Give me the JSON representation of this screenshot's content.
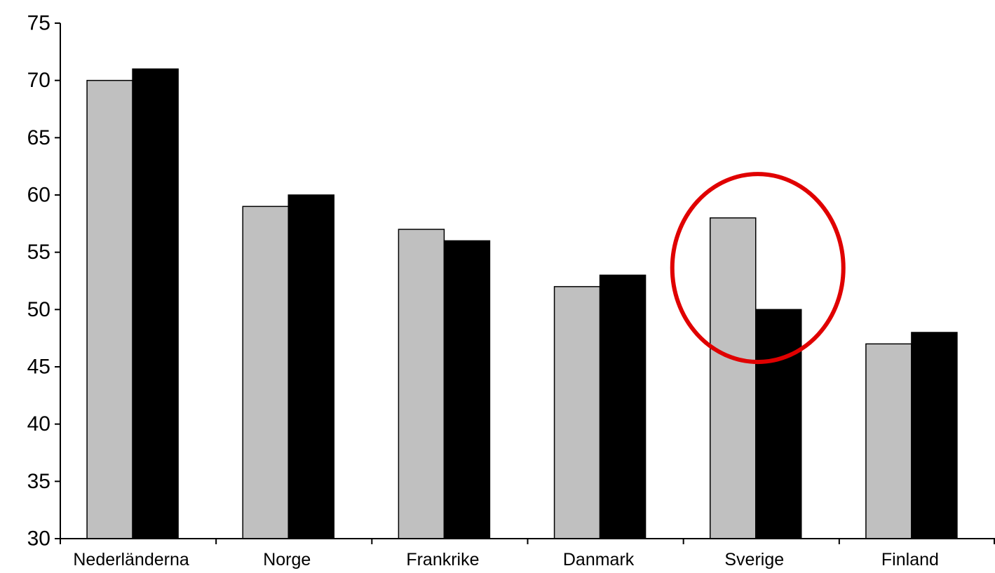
{
  "chart_data": {
    "type": "bar",
    "categories": [
      "Nederländerna",
      "Norge",
      "Frankrike",
      "Danmark",
      "Sverige",
      "Finland"
    ],
    "series": [
      {
        "color": "#c0c0c0",
        "values": [
          70,
          59,
          57,
          52,
          58,
          47
        ]
      },
      {
        "color": "#000000",
        "values": [
          71,
          60,
          56,
          53,
          50,
          48
        ]
      }
    ],
    "ylim": [
      30,
      75
    ],
    "yticks": [
      30,
      35,
      40,
      45,
      50,
      55,
      60,
      65,
      70,
      75
    ],
    "grid": false,
    "highlight": {
      "category": "Sverige",
      "shape": "ellipse",
      "color": "#e00000"
    }
  }
}
